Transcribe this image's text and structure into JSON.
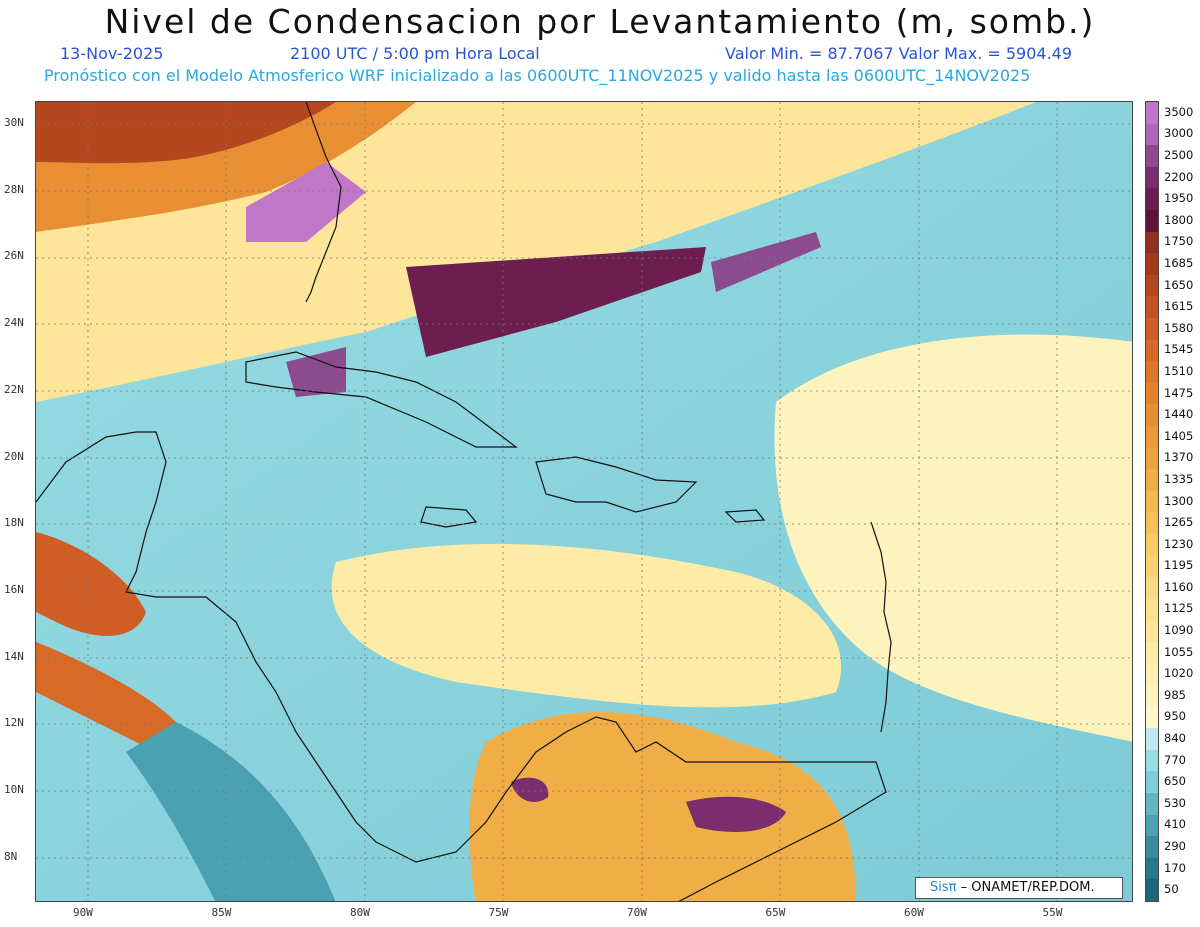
{
  "header": {
    "title": "Nivel de Condensacion por Levantamiento (m, somb.)",
    "date": "13-Nov-2025",
    "time": "2100 UTC / 5:00 pm Hora Local",
    "minmax": "Valor Min. = 87.7067  Valor Max. = 5904.49",
    "model_line": "Pronóstico con el Modelo Atmosferico WRF inicializado a las 0600UTC_11NOV2025 y valido hasta las  0600UTC_14NOV2025"
  },
  "map": {
    "lat_ticks": [
      "30N",
      "28N",
      "26N",
      "24N",
      "22N",
      "20N",
      "18N",
      "16N",
      "14N",
      "12N",
      "10N",
      "8N"
    ],
    "lon_ticks": [
      "90W",
      "85W",
      "80W",
      "75W",
      "70W",
      "65W",
      "60W",
      "55W"
    ]
  },
  "colorbar": {
    "levels": [
      "3500",
      "3000",
      "2500",
      "2200",
      "1950",
      "1800",
      "1750",
      "1685",
      "1650",
      "1615",
      "1580",
      "1545",
      "1510",
      "1475",
      "1440",
      "1405",
      "1370",
      "1335",
      "1300",
      "1265",
      "1230",
      "1195",
      "1160",
      "1125",
      "1090",
      "1055",
      "1020",
      "985",
      "950",
      "840",
      "770",
      "650",
      "530",
      "410",
      "290",
      "170",
      "50"
    ],
    "colors": [
      "#c077c8",
      "#b266b8",
      "#8c4a8f",
      "#7a2e6e",
      "#6c1e50",
      "#5e1338",
      "#8e2f1f",
      "#a33b1c",
      "#b5471f",
      "#c45323",
      "#cf5d25",
      "#d86a28",
      "#df772b",
      "#e4832f",
      "#e88f33",
      "#ec9a38",
      "#efa43e",
      "#f2ae46",
      "#f5b84f",
      "#f7c15a",
      "#f9ca66",
      "#fad273",
      "#fbd980",
      "#fce08d",
      "#fde69a",
      "#fdeba6",
      "#feefb2",
      "#fef3bd",
      "#fef6c8",
      "#bfe9ef",
      "#98dbe3",
      "#7ccbd6",
      "#61b6c4",
      "#4aa1b2",
      "#388c9f",
      "#27798d",
      "#1c677b"
    ]
  },
  "credit": {
    "brand_a": "Sis",
    "brand_pi": "π",
    "rest": " – ONAMET/REP.DOM."
  }
}
